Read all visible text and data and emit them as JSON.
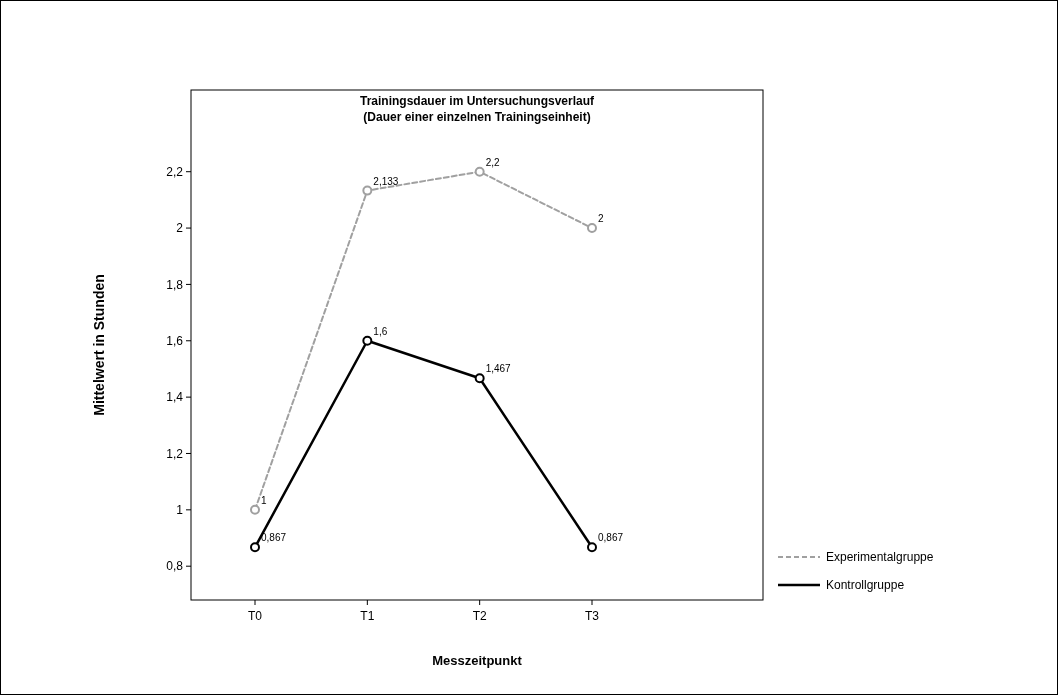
{
  "chart_data": {
    "type": "line",
    "title": "Trainingsdauer im Untersuchungsverlauf",
    "subtitle": "(Dauer einer einzelnen Trainingseinheit)",
    "xlabel": "Messzeitpunkt",
    "ylabel": "Mittelwert in Stunden",
    "categories": [
      "T0",
      "T1",
      "T2",
      "T3"
    ],
    "series": [
      {
        "name": "Experimentalgruppe",
        "color": "#a0a0a0",
        "line_style": "dashed",
        "values": [
          1,
          2.133,
          2.2,
          2
        ],
        "value_labels": [
          "1",
          "2,133",
          "2,2",
          "2"
        ]
      },
      {
        "name": "Kontrollgruppe",
        "color": "#000000",
        "line_style": "solid",
        "values": [
          0.867,
          1.6,
          1.467,
          0.867
        ],
        "value_labels": [
          "0,867",
          "1,6",
          "1,467",
          "0,867"
        ]
      }
    ],
    "ylim": [
      0.68,
      2.49
    ],
    "yticks": [
      {
        "value": 0.8,
        "label": "0,8"
      },
      1,
      {
        "value": 1.2,
        "label": "1,2"
      },
      {
        "value": 1.4,
        "label": "1,4"
      },
      {
        "value": 1.6,
        "label": "1,6"
      },
      {
        "value": 1.8,
        "label": "1,8"
      },
      2,
      {
        "value": 2.2,
        "label": "2,2"
      }
    ],
    "marker": "circle",
    "grid": false,
    "legend": "right"
  }
}
